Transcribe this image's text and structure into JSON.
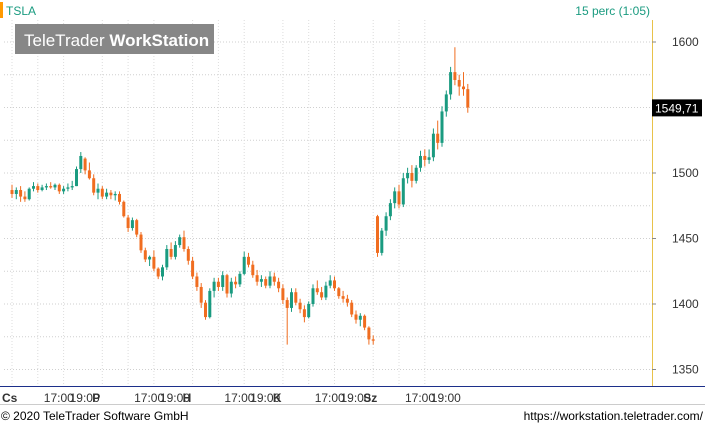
{
  "header": {
    "symbol": "TSLA",
    "interval": "15 perc (1:05)"
  },
  "watermark": {
    "brand_light": "TeleTrader ",
    "brand_bold": "WorkStation"
  },
  "footer": {
    "copyright": "© 2020 TeleTrader Software GmbH",
    "url": "https://workstation.teletrader.com/"
  },
  "colors": {
    "up": "#1a9b80",
    "down": "#f06d20",
    "accent_bar": "#ff9900",
    "interval_text": "#1a9b80",
    "price_axis_border": "#e8c24a",
    "bottom_line": "#1c2f8a"
  },
  "last_price_label": "1549,71",
  "chart_data": {
    "type": "candlestick",
    "symbol": "TSLA",
    "ylim": [
      1340,
      1605
    ],
    "yticks": [
      1350,
      1400,
      1450,
      1500
    ],
    "ytick_top": 1600,
    "last_price": 1549.71,
    "grid": true,
    "x_labels": [
      {
        "label": "Cs",
        "bold": true,
        "slot": 0
      },
      {
        "label": "17:00",
        "bold": false,
        "slot": 6
      },
      {
        "label": "19:00",
        "bold": false,
        "slot": 12
      },
      {
        "label": "P",
        "bold": true,
        "slot": 21
      },
      {
        "label": "17:00",
        "bold": false,
        "slot": 27
      },
      {
        "label": "19:00",
        "bold": false,
        "slot": 33
      },
      {
        "label": "H",
        "bold": true,
        "slot": 42
      },
      {
        "label": "17:00",
        "bold": false,
        "slot": 48
      },
      {
        "label": "19:00",
        "bold": false,
        "slot": 54
      },
      {
        "label": "K",
        "bold": true,
        "slot": 63
      },
      {
        "label": "17:00",
        "bold": false,
        "slot": 69
      },
      {
        "label": "19:00",
        "bold": false,
        "slot": 75
      },
      {
        "label": "Sz",
        "bold": true,
        "slot": 84
      },
      {
        "label": "17:00",
        "bold": false,
        "slot": 90
      },
      {
        "label": "19:00",
        "bold": false,
        "slot": 96
      }
    ],
    "candles": [
      [
        1487,
        1491,
        1481,
        1484
      ],
      [
        1484,
        1489,
        1480,
        1487
      ],
      [
        1487,
        1490,
        1478,
        1482
      ],
      [
        1482,
        1486,
        1478,
        1480
      ],
      [
        1480,
        1489,
        1479,
        1488
      ],
      [
        1488,
        1493,
        1486,
        1490
      ],
      [
        1490,
        1492,
        1485,
        1487
      ],
      [
        1487,
        1491,
        1486,
        1489
      ],
      [
        1489,
        1492,
        1487,
        1490
      ],
      [
        1490,
        1493,
        1488,
        1489
      ],
      [
        1489,
        1492,
        1487,
        1491
      ],
      [
        1491,
        1492,
        1484,
        1486
      ],
      [
        1486,
        1490,
        1484,
        1488
      ],
      [
        1488,
        1492,
        1486,
        1489
      ],
      [
        1489,
        1494,
        1487,
        1490
      ],
      [
        1490,
        1505,
        1490,
        1503
      ],
      [
        1503,
        1516,
        1500,
        1513
      ],
      [
        1511,
        1512,
        1499,
        1502
      ],
      [
        1502,
        1508,
        1495,
        1496
      ],
      [
        1496,
        1499,
        1483,
        1485
      ],
      [
        1485,
        1492,
        1480,
        1488
      ],
      [
        1488,
        1490,
        1480,
        1482
      ],
      [
        1482,
        1488,
        1480,
        1485
      ],
      [
        1485,
        1487,
        1480,
        1483
      ],
      [
        1483,
        1486,
        1479,
        1484
      ],
      [
        1484,
        1486,
        1476,
        1478
      ],
      [
        1478,
        1479,
        1466,
        1467
      ],
      [
        1466,
        1468,
        1455,
        1458
      ],
      [
        1458,
        1466,
        1456,
        1464
      ],
      [
        1464,
        1465,
        1451,
        1453
      ],
      [
        1453,
        1455,
        1439,
        1441
      ],
      [
        1441,
        1443,
        1432,
        1434
      ],
      [
        1434,
        1437,
        1429,
        1436
      ],
      [
        1436,
        1441,
        1425,
        1427
      ],
      [
        1427,
        1428,
        1419,
        1421
      ],
      [
        1421,
        1430,
        1418,
        1428
      ],
      [
        1428,
        1445,
        1426,
        1442
      ],
      [
        1442,
        1447,
        1434,
        1436
      ],
      [
        1436,
        1448,
        1434,
        1445
      ],
      [
        1445,
        1453,
        1443,
        1451
      ],
      [
        1451,
        1456,
        1440,
        1442
      ],
      [
        1442,
        1444,
        1430,
        1433
      ],
      [
        1433,
        1436,
        1419,
        1421
      ],
      [
        1421,
        1424,
        1410,
        1413
      ],
      [
        1413,
        1416,
        1397,
        1401
      ],
      [
        1401,
        1403,
        1388,
        1390
      ],
      [
        1390,
        1412,
        1389,
        1410
      ],
      [
        1410,
        1420,
        1405,
        1417
      ],
      [
        1417,
        1420,
        1410,
        1413
      ],
      [
        1413,
        1425,
        1410,
        1422
      ],
      [
        1422,
        1423,
        1405,
        1408
      ],
      [
        1408,
        1420,
        1405,
        1417
      ],
      [
        1417,
        1421,
        1412,
        1415
      ],
      [
        1415,
        1425,
        1413,
        1423
      ],
      [
        1423,
        1440,
        1422,
        1436
      ],
      [
        1436,
        1439,
        1428,
        1430
      ],
      [
        1430,
        1433,
        1420,
        1422
      ],
      [
        1422,
        1426,
        1414,
        1417
      ],
      [
        1417,
        1422,
        1413,
        1419
      ],
      [
        1419,
        1421,
        1412,
        1414
      ],
      [
        1414,
        1425,
        1412,
        1421
      ],
      [
        1421,
        1424,
        1414,
        1417
      ],
      [
        1417,
        1420,
        1409,
        1412
      ],
      [
        1412,
        1415,
        1400,
        1403
      ],
      [
        1403,
        1405,
        1369,
        1397
      ],
      [
        1397,
        1412,
        1394,
        1409
      ],
      [
        1409,
        1412,
        1399,
        1401
      ],
      [
        1401,
        1404,
        1393,
        1396
      ],
      [
        1396,
        1399,
        1386,
        1390
      ],
      [
        1390,
        1402,
        1389,
        1400
      ],
      [
        1400,
        1415,
        1398,
        1412
      ],
      [
        1412,
        1418,
        1407,
        1409
      ],
      [
        1409,
        1413,
        1403,
        1405
      ],
      [
        1405,
        1417,
        1403,
        1414
      ],
      [
        1414,
        1422,
        1412,
        1418
      ],
      [
        1418,
        1421,
        1410,
        1412
      ],
      [
        1412,
        1413,
        1404,
        1406
      ],
      [
        1406,
        1410,
        1401,
        1404
      ],
      [
        1404,
        1407,
        1398,
        1401
      ],
      [
        1401,
        1403,
        1390,
        1392
      ],
      [
        1392,
        1395,
        1385,
        1388
      ],
      [
        1388,
        1393,
        1383,
        1391
      ],
      [
        1391,
        1392,
        1380,
        1382
      ],
      [
        1382,
        1383,
        1369,
        1373
      ],
      [
        1373,
        1376,
        1369,
        1372
      ],
      [
        1467,
        1468,
        1436,
        1439
      ],
      [
        1439,
        1458,
        1437,
        1456
      ],
      [
        1456,
        1470,
        1452,
        1467
      ],
      [
        1467,
        1480,
        1464,
        1477
      ],
      [
        1477,
        1489,
        1473,
        1486
      ],
      [
        1486,
        1491,
        1473,
        1476
      ],
      [
        1476,
        1500,
        1474,
        1496
      ],
      [
        1496,
        1504,
        1492,
        1500
      ],
      [
        1500,
        1506,
        1489,
        1494
      ],
      [
        1494,
        1506,
        1492,
        1504
      ],
      [
        1504,
        1517,
        1501,
        1513
      ],
      [
        1513,
        1518,
        1505,
        1510
      ],
      [
        1510,
        1518,
        1507,
        1512
      ],
      [
        1512,
        1534,
        1509,
        1530
      ],
      [
        1530,
        1540,
        1518,
        1523
      ],
      [
        1523,
        1551,
        1520,
        1547
      ],
      [
        1547,
        1563,
        1543,
        1560
      ],
      [
        1560,
        1581,
        1556,
        1577
      ],
      [
        1577,
        1596,
        1567,
        1571
      ],
      [
        1571,
        1575,
        1559,
        1566
      ],
      [
        1566,
        1577,
        1559,
        1564
      ],
      [
        1564,
        1568,
        1546,
        1550
      ]
    ]
  }
}
